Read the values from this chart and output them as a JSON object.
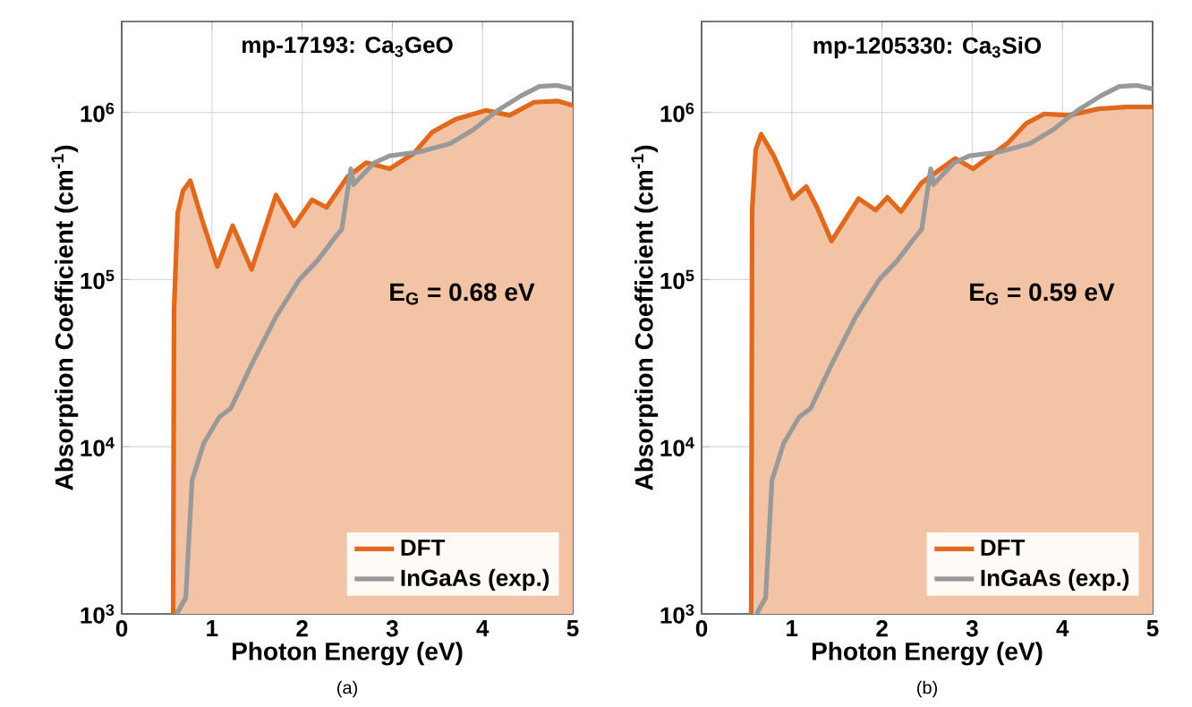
{
  "chart_data": [
    {
      "type": "line",
      "title": "mp-17193: Ca$_{3}$GeO",
      "xlabel": "Photon Energy (eV)",
      "ylabel": "Absorption Coefficient (cm$^{-1}$)",
      "log": "y",
      "grid": true,
      "legend": "bottom right",
      "xlim": [
        0,
        5
      ],
      "xticks": [
        0,
        1,
        2,
        3,
        4,
        5
      ],
      "ylim": [
        1000,
        3500000
      ],
      "yticks": [
        {
          "value": 1000,
          "label": "10$^{3}$"
        },
        {
          "value": 10000,
          "label": "10$^{4}$"
        },
        {
          "value": 100000,
          "label": "10$^{5}$"
        },
        {
          "value": 1000000,
          "label": "10$^{6}$"
        }
      ],
      "annotations": [
        "E$_{G}$ = 0.68 eV",
        "(a)"
      ],
      "series": [
        {
          "name": "DFT",
          "type": "area",
          "color": "#e0691e",
          "x": [
            0.57,
            0.58,
            0.62,
            0.68,
            0.76,
            0.9,
            1.06,
            1.23,
            1.44,
            1.71,
            1.91,
            2.11,
            2.27,
            2.5,
            2.71,
            2.97,
            3.24,
            3.44,
            3.7,
            4.04,
            4.3,
            4.57,
            4.83,
            5.0
          ],
          "values": [
            1000,
            66000,
            250000,
            340000,
            390000,
            220000,
            120000,
            210000,
            115000,
            320000,
            210000,
            300000,
            270000,
            410000,
            500000,
            460000,
            570000,
            760000,
            910000,
            1030000,
            960000,
            1150000,
            1170000,
            1100000
          ]
        },
        {
          "name": "InGaAs (exp.)",
          "color": "#999999",
          "x": [
            0.61,
            0.71,
            0.78,
            0.91,
            1.08,
            1.21,
            1.44,
            1.71,
            1.97,
            2.17,
            2.37,
            2.44,
            2.54,
            2.57,
            2.8,
            2.97,
            3.3,
            3.64,
            3.9,
            4.17,
            4.43,
            4.63,
            4.83,
            5.0
          ],
          "values": [
            1000,
            1250,
            6300,
            10500,
            15000,
            17000,
            31000,
            60000,
            100000,
            130000,
            180000,
            200000,
            460000,
            370000,
            500000,
            550000,
            580000,
            650000,
            790000,
            1030000,
            1260000,
            1430000,
            1450000,
            1380000
          ]
        }
      ]
    },
    {
      "type": "line",
      "title": "mp-1205330: Ca$_{3}$SiO",
      "xlabel": "Photon Energy (eV)",
      "ylabel": "Absorption Coefficient (cm$^{-1}$)",
      "log": "y",
      "grid": true,
      "legend": "bottom right",
      "xlim": [
        0,
        5
      ],
      "xticks": [
        0,
        1,
        2,
        3,
        4,
        5
      ],
      "ylim": [
        1000,
        3500000
      ],
      "yticks": [
        {
          "value": 1000,
          "label": "10$^{3}$"
        },
        {
          "value": 10000,
          "label": "10$^{4}$"
        },
        {
          "value": 100000,
          "label": "10$^{5}$"
        },
        {
          "value": 1000000,
          "label": "10$^{6}$"
        }
      ],
      "annotations": [
        "E$_{G}$ = 0.59 eV",
        "(b)"
      ],
      "series": [
        {
          "name": "DFT",
          "type": "area",
          "color": "#e0691e",
          "x": [
            0.55,
            0.56,
            0.6,
            0.66,
            0.8,
            1.01,
            1.16,
            1.28,
            1.44,
            1.74,
            1.93,
            2.06,
            2.21,
            2.44,
            2.81,
            3.01,
            3.4,
            3.6,
            3.8,
            4.07,
            4.4,
            4.73,
            5.0
          ],
          "values": [
            1000,
            260000,
            600000,
            740000,
            550000,
            305000,
            360000,
            270000,
            170000,
            305000,
            260000,
            310000,
            255000,
            380000,
            530000,
            460000,
            660000,
            860000,
            980000,
            960000,
            1050000,
            1080000,
            1080000
          ]
        },
        {
          "name": "InGaAs (exp.)",
          "color": "#999999",
          "x": [
            0.61,
            0.71,
            0.78,
            0.91,
            1.08,
            1.21,
            1.44,
            1.71,
            1.97,
            2.17,
            2.37,
            2.44,
            2.54,
            2.57,
            2.8,
            2.97,
            3.3,
            3.64,
            3.9,
            4.17,
            4.43,
            4.63,
            4.83,
            5.0
          ],
          "values": [
            1000,
            1250,
            6300,
            10500,
            15000,
            17000,
            31000,
            60000,
            100000,
            130000,
            180000,
            200000,
            460000,
            370000,
            500000,
            550000,
            580000,
            650000,
            790000,
            1030000,
            1260000,
            1430000,
            1450000,
            1380000
          ]
        }
      ]
    }
  ]
}
